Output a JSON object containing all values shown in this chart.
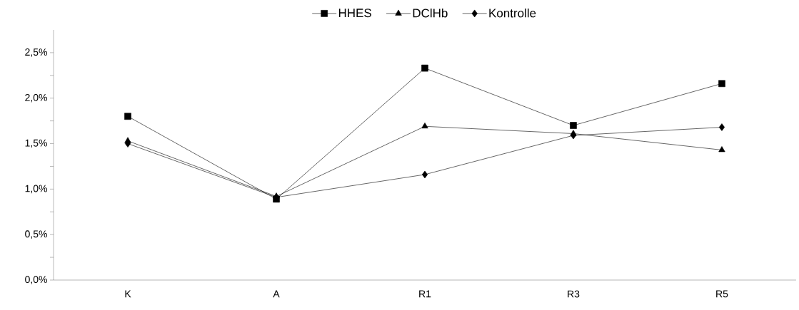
{
  "chart_data": {
    "type": "line",
    "categories": [
      "K",
      "A",
      "R1",
      "R3",
      "R5"
    ],
    "series": [
      {
        "name": "HHES",
        "color": "#000000",
        "marker": "square",
        "values": [
          1.8,
          0.89,
          2.33,
          1.7,
          2.16
        ]
      },
      {
        "name": "DClHb",
        "color": "#000000",
        "marker": "triangle",
        "values": [
          1.53,
          0.92,
          1.69,
          1.61,
          1.43
        ]
      },
      {
        "name": "Kontrolle",
        "color": "#000000",
        "marker": "diamond",
        "values": [
          1.5,
          0.91,
          1.16,
          1.59,
          1.68
        ]
      }
    ],
    "ylim": [
      0,
      2.75
    ],
    "yticks": [
      {
        "value": 0,
        "label": "0,0%"
      },
      {
        "value": 0.25,
        "label": null
      },
      {
        "value": 0.5,
        "label": "0,5%"
      },
      {
        "value": 0.75,
        "label": null
      },
      {
        "value": 1.0,
        "label": "1,0%"
      },
      {
        "value": 1.25,
        "label": null
      },
      {
        "value": 1.5,
        "label": "1,5%"
      },
      {
        "value": 1.75,
        "label": null
      },
      {
        "value": 2.0,
        "label": "2,0%"
      },
      {
        "value": 2.25,
        "label": null
      },
      {
        "value": 2.5,
        "label": "2,5%"
      }
    ],
    "grid": false,
    "legend": "top",
    "line_style": "solid"
  }
}
